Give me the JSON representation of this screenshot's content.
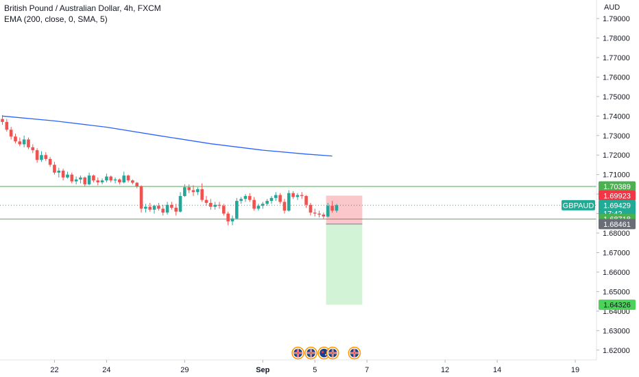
{
  "header": {
    "symbol_line": "British Pound / Australian Dollar, 4h, FXCM",
    "indicator_line": "EMA (200, close, 0, SMA, 5)",
    "currency": "AUD"
  },
  "colors": {
    "up": "#26a69a",
    "down": "#ef5350",
    "ema": "#2962ff",
    "level": "#4caf50",
    "stop_zone": "rgba(242,54,69,0.28)",
    "target_zone": "rgba(76,209,89,0.25)",
    "current": "#22ab94",
    "stop_tag": "#f23645",
    "target_tag": "#4cd159",
    "entry_tag": "#6a6d78"
  },
  "chart_data": {
    "type": "candlestick",
    "y_range": [
      1.615,
      1.7995
    ],
    "y_ticks": [
      "1.79000",
      "1.78000",
      "1.77000",
      "1.76000",
      "1.75000",
      "1.74000",
      "1.73000",
      "1.72000",
      "1.71000",
      "1.70000",
      "1.69000",
      "1.68000",
      "1.67000",
      "1.66000",
      "1.65000",
      "1.64000",
      "1.63000",
      "1.62000"
    ],
    "x_ticks": [
      {
        "label": "22",
        "bar": 12,
        "bold": false
      },
      {
        "label": "24",
        "bar": 24,
        "bold": false
      },
      {
        "label": "29",
        "bar": 42,
        "bold": false
      },
      {
        "label": "Sep",
        "bar": 60,
        "bold": true
      },
      {
        "label": "5",
        "bar": 72,
        "bold": false
      },
      {
        "label": "7",
        "bar": 84,
        "bold": false
      },
      {
        "label": "12",
        "bar": 102,
        "bold": false
      },
      {
        "label": "14",
        "bar": 114,
        "bold": false
      },
      {
        "label": "19",
        "bar": 132,
        "bold": false
      }
    ],
    "ema_200": [
      {
        "bar": 0,
        "value": 1.74
      },
      {
        "bar": 12,
        "value": 1.7375
      },
      {
        "bar": 24,
        "value": 1.7343
      },
      {
        "bar": 36,
        "value": 1.73
      },
      {
        "bar": 48,
        "value": 1.7258
      },
      {
        "bar": 60,
        "value": 1.7225
      },
      {
        "bar": 70,
        "value": 1.7205
      },
      {
        "bar": 76,
        "value": 1.7195
      }
    ],
    "candles": [
      [
        1.7385,
        1.7405,
        1.7355,
        1.737
      ],
      [
        1.737,
        1.7385,
        1.732,
        1.733
      ],
      [
        1.733,
        1.7345,
        1.728,
        1.7295
      ],
      [
        1.7295,
        1.731,
        1.726,
        1.727
      ],
      [
        1.727,
        1.729,
        1.7245,
        1.7255
      ],
      [
        1.7255,
        1.73,
        1.724,
        1.728
      ],
      [
        1.728,
        1.729,
        1.723,
        1.724
      ],
      [
        1.724,
        1.7255,
        1.721,
        1.7225
      ],
      [
        1.7225,
        1.7235,
        1.716,
        1.7175
      ],
      [
        1.7175,
        1.722,
        1.7165,
        1.72
      ],
      [
        1.72,
        1.7215,
        1.717,
        1.718
      ],
      [
        1.718,
        1.719,
        1.714,
        1.715
      ],
      [
        1.715,
        1.7165,
        1.71,
        1.711
      ],
      [
        1.711,
        1.7135,
        1.7085,
        1.712
      ],
      [
        1.712,
        1.713,
        1.707,
        1.7085
      ],
      [
        1.7085,
        1.7115,
        1.708,
        1.71
      ],
      [
        1.71,
        1.711,
        1.7055,
        1.7065
      ],
      [
        1.7065,
        1.709,
        1.705,
        1.7075
      ],
      [
        1.7075,
        1.7095,
        1.7055,
        1.7085
      ],
      [
        1.7085,
        1.709,
        1.704,
        1.705
      ],
      [
        1.705,
        1.711,
        1.7045,
        1.7095
      ],
      [
        1.7095,
        1.71,
        1.706,
        1.707
      ],
      [
        1.707,
        1.7085,
        1.7045,
        1.706
      ],
      [
        1.706,
        1.708,
        1.705,
        1.707
      ],
      [
        1.707,
        1.7105,
        1.706,
        1.709
      ],
      [
        1.709,
        1.7095,
        1.706,
        1.707
      ],
      [
        1.707,
        1.7085,
        1.7055,
        1.7075
      ],
      [
        1.7075,
        1.708,
        1.705,
        1.706
      ],
      [
        1.706,
        1.7115,
        1.7055,
        1.7095
      ],
      [
        1.7095,
        1.71,
        1.706,
        1.707
      ],
      [
        1.707,
        1.7075,
        1.705,
        1.7058
      ],
      [
        1.7058,
        1.7062,
        1.703,
        1.704
      ],
      [
        1.704,
        1.7045,
        1.6905,
        1.6925
      ],
      [
        1.6925,
        1.695,
        1.6905,
        1.6935
      ],
      [
        1.6935,
        1.6955,
        1.691,
        1.692
      ],
      [
        1.692,
        1.6945,
        1.69,
        1.694
      ],
      [
        1.694,
        1.6955,
        1.6915,
        1.6925
      ],
      [
        1.6925,
        1.6945,
        1.689,
        1.6905
      ],
      [
        1.6905,
        1.696,
        1.6895,
        1.6945
      ],
      [
        1.6945,
        1.696,
        1.692,
        1.693
      ],
      [
        1.693,
        1.695,
        1.689,
        1.691
      ],
      [
        1.691,
        1.701,
        1.6905,
        1.699
      ],
      [
        1.699,
        1.705,
        1.6985,
        1.7035
      ],
      [
        1.7035,
        1.705,
        1.7005,
        1.702
      ],
      [
        1.702,
        1.7045,
        1.699,
        1.701
      ],
      [
        1.701,
        1.7035,
        1.6995,
        1.7025
      ],
      [
        1.7025,
        1.7055,
        1.696,
        1.697
      ],
      [
        1.697,
        1.699,
        1.694,
        1.6955
      ],
      [
        1.6955,
        1.6975,
        1.692,
        1.6935
      ],
      [
        1.6935,
        1.696,
        1.692,
        1.6945
      ],
      [
        1.6945,
        1.696,
        1.6925,
        1.694
      ],
      [
        1.694,
        1.695,
        1.689,
        1.69
      ],
      [
        1.69,
        1.691,
        1.684,
        1.686
      ],
      [
        1.686,
        1.689,
        1.684,
        1.6875
      ],
      [
        1.6875,
        1.698,
        1.687,
        1.6965
      ],
      [
        1.6965,
        1.6985,
        1.695,
        1.6975
      ],
      [
        1.6975,
        1.7,
        1.696,
        1.699
      ],
      [
        1.699,
        1.7005,
        1.696,
        1.697
      ],
      [
        1.697,
        1.6985,
        1.6915,
        1.6925
      ],
      [
        1.6925,
        1.695,
        1.6915,
        1.694
      ],
      [
        1.694,
        1.696,
        1.6925,
        1.695
      ],
      [
        1.695,
        1.6975,
        1.694,
        1.6965
      ],
      [
        1.6965,
        1.699,
        1.695,
        1.698
      ],
      [
        1.698,
        1.701,
        1.6965,
        1.6995
      ],
      [
        1.6995,
        1.7005,
        1.695,
        1.696
      ],
      [
        1.696,
        1.6975,
        1.69,
        1.6915
      ],
      [
        1.6915,
        1.702,
        1.691,
        1.7005
      ],
      [
        1.7005,
        1.7015,
        1.6975,
        1.6985
      ],
      [
        1.6985,
        1.7005,
        1.697,
        1.6995
      ],
      [
        1.6995,
        1.701,
        1.6975,
        1.699
      ],
      [
        1.699,
        1.6995,
        1.693,
        1.6945
      ],
      [
        1.6945,
        1.6955,
        1.689,
        1.6905
      ],
      [
        1.6905,
        1.6925,
        1.6885,
        1.69
      ],
      [
        1.69,
        1.6915,
        1.688,
        1.6895
      ],
      [
        1.6895,
        1.6905,
        1.687,
        1.6885
      ],
      [
        1.6885,
        1.6955,
        1.688,
        1.694
      ],
      [
        1.694,
        1.6965,
        1.6905,
        1.6915
      ],
      [
        1.6915,
        1.695,
        1.6905,
        1.6943
      ]
    ],
    "levels": {
      "resistance": "1.70389",
      "support": "1.68718"
    },
    "position": {
      "stop": "1.69923",
      "entry": "1.68461",
      "target": "1.64326",
      "from_bar": 76,
      "to_bar": 83
    },
    "current": {
      "symbol": "GBPAUD",
      "price": "1.69429",
      "countdown": "17:42"
    },
    "events": [
      {
        "bar": 70,
        "flag": "gb"
      },
      {
        "bar": 73,
        "flag": "gb"
      },
      {
        "bar": 76,
        "flag": "au"
      },
      {
        "bar": 78,
        "flag": "gb"
      },
      {
        "bar": 83,
        "flag": "gb"
      }
    ]
  }
}
